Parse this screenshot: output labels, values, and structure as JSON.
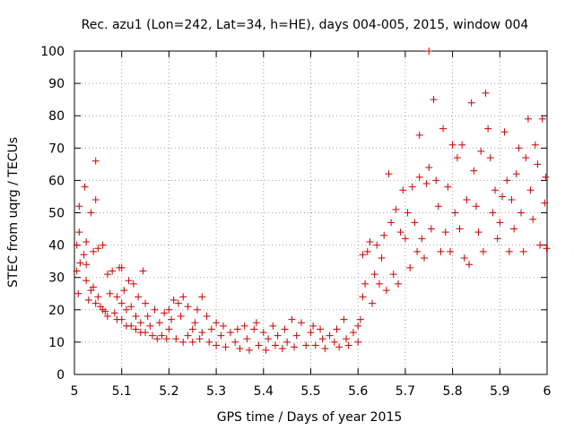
{
  "chart_data": {
    "type": "scatter",
    "title": "Rec. azu1 (Lon=242, Lat=34, h=HE), days 004-005, 2015, window 004",
    "xlabel": "GPS time / Days of year 2015",
    "ylabel": "STEC from uqrg / TECUs",
    "xlim": [
      5,
      6
    ],
    "ylim": [
      0,
      100
    ],
    "x_ticks": [
      5,
      5.1,
      5.2,
      5.3,
      5.4,
      5.5,
      5.6,
      5.7,
      5.8,
      5.9,
      6
    ],
    "x_tick_labels": [
      "5",
      "5.1",
      "5.2",
      "5.3",
      "5.4",
      "5.5",
      "5.6",
      "5.7",
      "5.8",
      "5.9",
      "6"
    ],
    "y_ticks": [
      0,
      10,
      20,
      30,
      40,
      50,
      60,
      70,
      80,
      90,
      100
    ],
    "y_tick_labels": [
      "0",
      "10",
      "20",
      "30",
      "40",
      "50",
      "60",
      "70",
      "80",
      "90",
      "100"
    ],
    "grid": true,
    "marker": "plus",
    "color": "#cc0000",
    "series": [
      {
        "points": [
          [
            5.005,
            40
          ],
          [
            5.005,
            32
          ],
          [
            5.008,
            25
          ],
          [
            5.01,
            52
          ],
          [
            5.01,
            44
          ],
          [
            5.012,
            34.5
          ],
          [
            5.02,
            37
          ],
          [
            5.022,
            58
          ],
          [
            5.025,
            41
          ],
          [
            5.025,
            34
          ],
          [
            5.025,
            29
          ],
          [
            5.03,
            23
          ],
          [
            5.035,
            50
          ],
          [
            5.035,
            26
          ],
          [
            5.04,
            38
          ],
          [
            5.04,
            27
          ],
          [
            5.045,
            66
          ],
          [
            5.045,
            54
          ],
          [
            5.045,
            22
          ],
          [
            5.05,
            39
          ],
          [
            5.05,
            24
          ],
          [
            5.055,
            21
          ],
          [
            5.06,
            40
          ],
          [
            5.06,
            20
          ],
          [
            5.065,
            19.5
          ],
          [
            5.07,
            31
          ],
          [
            5.07,
            18
          ],
          [
            5.075,
            25
          ],
          [
            5.08,
            32
          ],
          [
            5.085,
            19
          ],
          [
            5.09,
            24
          ],
          [
            5.09,
            17
          ],
          [
            5.095,
            33
          ],
          [
            5.1,
            33
          ],
          [
            5.1,
            22
          ],
          [
            5.1,
            17
          ],
          [
            5.105,
            26
          ],
          [
            5.11,
            20
          ],
          [
            5.11,
            15
          ],
          [
            5.115,
            29
          ],
          [
            5.12,
            21
          ],
          [
            5.12,
            15
          ],
          [
            5.125,
            28
          ],
          [
            5.13,
            18
          ],
          [
            5.13,
            14
          ],
          [
            5.135,
            24
          ],
          [
            5.14,
            16
          ],
          [
            5.14,
            13
          ],
          [
            5.145,
            32
          ],
          [
            5.15,
            22
          ],
          [
            5.15,
            13
          ],
          [
            5.155,
            18
          ],
          [
            5.16,
            15
          ],
          [
            5.165,
            12
          ],
          [
            5.17,
            20
          ],
          [
            5.175,
            11
          ],
          [
            5.18,
            16
          ],
          [
            5.185,
            12
          ],
          [
            5.19,
            19
          ],
          [
            5.195,
            11
          ],
          [
            5.2,
            20
          ],
          [
            5.2,
            14
          ],
          [
            5.205,
            17
          ],
          [
            5.21,
            23
          ],
          [
            5.215,
            11
          ],
          [
            5.22,
            22
          ],
          [
            5.225,
            18
          ],
          [
            5.23,
            24
          ],
          [
            5.23,
            10
          ],
          [
            5.24,
            21
          ],
          [
            5.24,
            12
          ],
          [
            5.25,
            14
          ],
          [
            5.25,
            10
          ],
          [
            5.255,
            16
          ],
          [
            5.26,
            20
          ],
          [
            5.265,
            11
          ],
          [
            5.27,
            24
          ],
          [
            5.27,
            13
          ],
          [
            5.28,
            18
          ],
          [
            5.285,
            10
          ],
          [
            5.29,
            14
          ],
          [
            5.3,
            16
          ],
          [
            5.3,
            9
          ],
          [
            5.31,
            12
          ],
          [
            5.315,
            15
          ],
          [
            5.32,
            8.5
          ],
          [
            5.33,
            13
          ],
          [
            5.34,
            10
          ],
          [
            5.345,
            14
          ],
          [
            5.35,
            8
          ],
          [
            5.36,
            15
          ],
          [
            5.365,
            11
          ],
          [
            5.37,
            7.5
          ],
          [
            5.38,
            14
          ],
          [
            5.385,
            16
          ],
          [
            5.39,
            9
          ],
          [
            5.4,
            13
          ],
          [
            5.405,
            7.5
          ],
          [
            5.41,
            11
          ],
          [
            5.42,
            15
          ],
          [
            5.425,
            9
          ],
          [
            5.43,
            12
          ],
          [
            5.44,
            8
          ],
          [
            5.445,
            14
          ],
          [
            5.45,
            10
          ],
          [
            5.46,
            17
          ],
          [
            5.465,
            8.5
          ],
          [
            5.47,
            12
          ],
          [
            5.48,
            16
          ],
          [
            5.49,
            9
          ],
          [
            5.5,
            13
          ],
          [
            5.505,
            15
          ],
          [
            5.51,
            9
          ],
          [
            5.52,
            14
          ],
          [
            5.525,
            11
          ],
          [
            5.53,
            8
          ],
          [
            5.54,
            12
          ],
          [
            5.55,
            10
          ],
          [
            5.555,
            14
          ],
          [
            5.56,
            8.5
          ],
          [
            5.57,
            17
          ],
          [
            5.575,
            11
          ],
          [
            5.58,
            9
          ],
          [
            5.59,
            13
          ],
          [
            5.6,
            15
          ],
          [
            5.6,
            10
          ],
          [
            5.605,
            17
          ],
          [
            5.61,
            37
          ],
          [
            5.61,
            24
          ],
          [
            5.615,
            28
          ],
          [
            5.62,
            38
          ],
          [
            5.625,
            41
          ],
          [
            5.63,
            22
          ],
          [
            5.635,
            31
          ],
          [
            5.64,
            40
          ],
          [
            5.645,
            28
          ],
          [
            5.65,
            36
          ],
          [
            5.655,
            43
          ],
          [
            5.66,
            26
          ],
          [
            5.665,
            62
          ],
          [
            5.67,
            47
          ],
          [
            5.675,
            31
          ],
          [
            5.68,
            51
          ],
          [
            5.685,
            28
          ],
          [
            5.69,
            44
          ],
          [
            5.695,
            57
          ],
          [
            5.7,
            42
          ],
          [
            5.705,
            50
          ],
          [
            5.71,
            33
          ],
          [
            5.715,
            58
          ],
          [
            5.72,
            47
          ],
          [
            5.725,
            38
          ],
          [
            5.73,
            74
          ],
          [
            5.73,
            61
          ],
          [
            5.735,
            42
          ],
          [
            5.74,
            36
          ],
          [
            5.745,
            59
          ],
          [
            5.75,
            100
          ],
          [
            5.75,
            64
          ],
          [
            5.755,
            45
          ],
          [
            5.76,
            85
          ],
          [
            5.765,
            60
          ],
          [
            5.77,
            52
          ],
          [
            5.775,
            38
          ],
          [
            5.78,
            76
          ],
          [
            5.785,
            44
          ],
          [
            5.79,
            58
          ],
          [
            5.795,
            38
          ],
          [
            5.8,
            71
          ],
          [
            5.805,
            50
          ],
          [
            5.81,
            67
          ],
          [
            5.815,
            45
          ],
          [
            5.82,
            71
          ],
          [
            5.825,
            36
          ],
          [
            5.83,
            54
          ],
          [
            5.835,
            34
          ],
          [
            5.84,
            84
          ],
          [
            5.845,
            63
          ],
          [
            5.85,
            52
          ],
          [
            5.855,
            44
          ],
          [
            5.86,
            69
          ],
          [
            5.865,
            38
          ],
          [
            5.87,
            87
          ],
          [
            5.875,
            76
          ],
          [
            5.88,
            67
          ],
          [
            5.885,
            50
          ],
          [
            5.89,
            57
          ],
          [
            5.895,
            42
          ],
          [
            5.9,
            47
          ],
          [
            5.905,
            55
          ],
          [
            5.91,
            75
          ],
          [
            5.915,
            60
          ],
          [
            5.92,
            38
          ],
          [
            5.925,
            54
          ],
          [
            5.93,
            45
          ],
          [
            5.935,
            62
          ],
          [
            5.94,
            70
          ],
          [
            5.945,
            50
          ],
          [
            5.95,
            38
          ],
          [
            5.955,
            67
          ],
          [
            5.96,
            79
          ],
          [
            5.965,
            57
          ],
          [
            5.97,
            48
          ],
          [
            5.975,
            71
          ],
          [
            5.98,
            65
          ],
          [
            5.985,
            40
          ],
          [
            5.99,
            79
          ],
          [
            5.995,
            53
          ],
          [
            5.997,
            61
          ],
          [
            5.999,
            39
          ]
        ]
      }
    ]
  }
}
